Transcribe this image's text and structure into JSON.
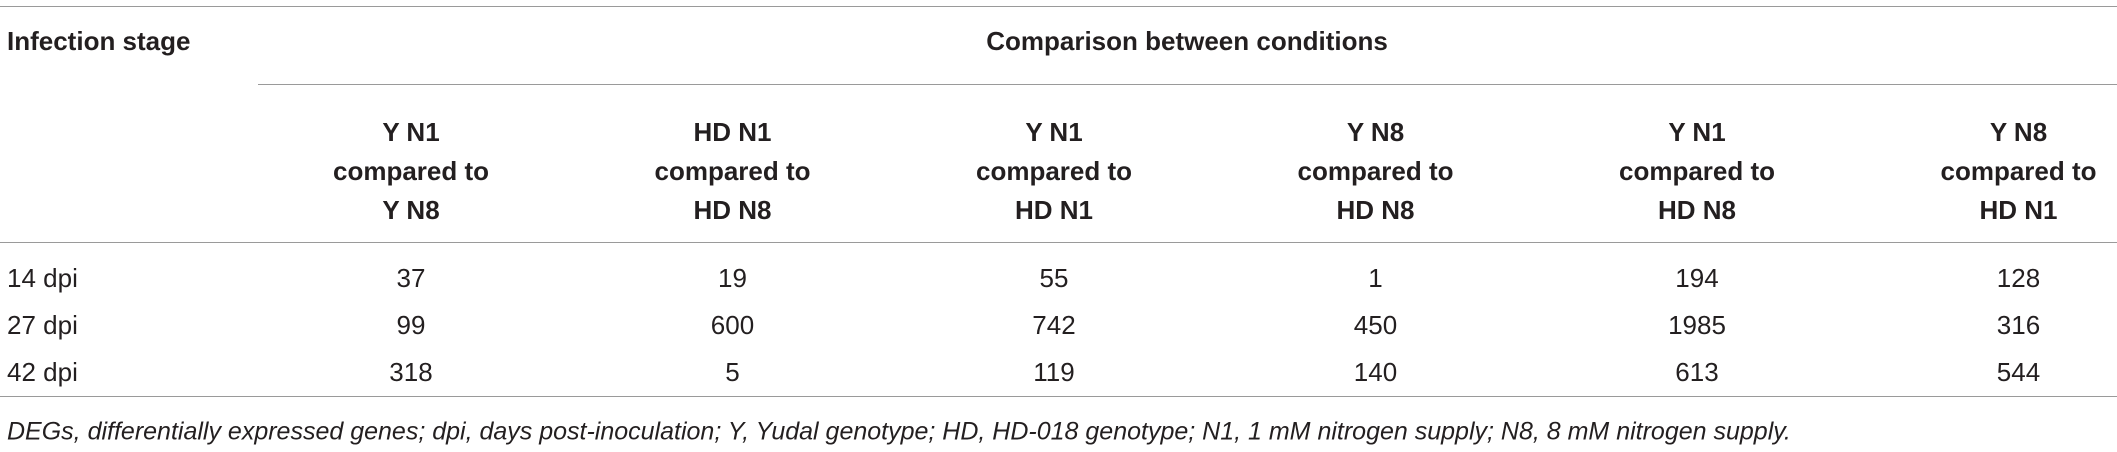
{
  "table": {
    "stub_header": "Infection stage",
    "group_header": "Comparison between conditions",
    "columns": [
      [
        "Y N1",
        "compared to",
        "Y N8"
      ],
      [
        "HD N1",
        "compared to",
        "HD N8"
      ],
      [
        "Y N1",
        "compared to",
        "HD N1"
      ],
      [
        "Y N8",
        "compared to",
        "HD N8"
      ],
      [
        "Y N1",
        "compared to",
        "HD N8"
      ],
      [
        "Y N8",
        "compared to",
        "HD N1"
      ]
    ],
    "rows": [
      [
        "14 dpi",
        37,
        19,
        55,
        1,
        194,
        128
      ],
      [
        "27 dpi",
        99,
        600,
        742,
        450,
        1985,
        316
      ],
      [
        "42 dpi",
        318,
        5,
        119,
        140,
        613,
        544
      ]
    ],
    "footnote": "DEGs, differentially expressed genes; dpi, days post-inoculation; Y, Yudal genotype; HD, HD-018 genotype; N1, 1 mM nitrogen supply; N8, 8 mM nitrogen supply."
  }
}
